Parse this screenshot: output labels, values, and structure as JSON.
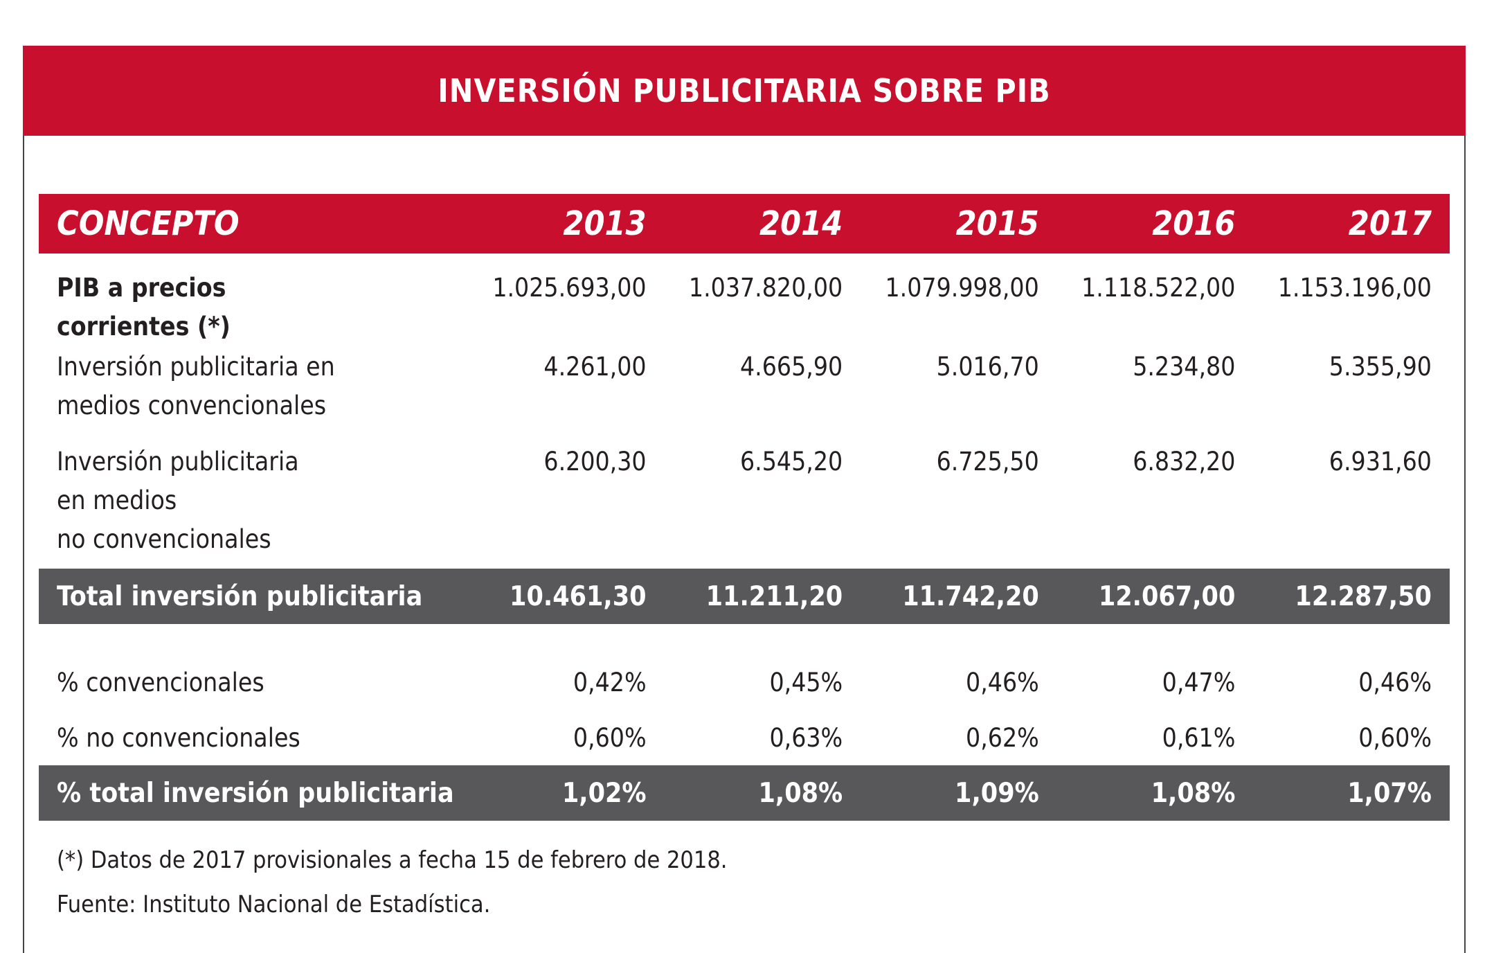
{
  "title": "INVERSIÓN PUBLICITARIA SOBRE PIB",
  "header": {
    "concept": "CONCEPTO",
    "years": [
      "2013",
      "2014",
      "2015",
      "2016",
      "2017"
    ]
  },
  "rows": [
    {
      "label_lines": [
        "PIB a precios",
        "corrientes (*)"
      ],
      "values": [
        "1.025.693,00",
        "1.037.820,00",
        "1.079.998,00",
        "1.118.522,00",
        "1.153.196,00"
      ]
    },
    {
      "label_lines": [
        "Inversión publicitaria en",
        "medios convencionales"
      ],
      "values": [
        "4.261,00",
        "4.665,90",
        "5.016,70",
        "5.234,80",
        "5.355,90"
      ]
    },
    {
      "label_lines": [
        "Inversión publicitaria",
        "en medios",
        "no convencionales"
      ],
      "values": [
        "6.200,30",
        "6.545,20",
        "6.725,50",
        "6.832,20",
        "6.931,60"
      ]
    }
  ],
  "total": {
    "label": "Total inversión publicitaria",
    "values": [
      "10.461,30",
      "11.211,20",
      "11.742,20",
      "12.067,00",
      "12.287,50"
    ]
  },
  "pct_rows": [
    {
      "label": "% convencionales",
      "values": [
        "0,42%",
        "0,45%",
        "0,46%",
        "0,47%",
        "0,46%"
      ]
    },
    {
      "label": "% no convencionales",
      "values": [
        "0,60%",
        "0,63%",
        "0,62%",
        "0,61%",
        "0,60%"
      ]
    }
  ],
  "pct_total": {
    "label": "% total inversión publicitaria",
    "values": [
      "1,02%",
      "1,08%",
      "1,09%",
      "1,08%",
      "1,07%"
    ]
  },
  "notes": {
    "footnote": "(*) Datos de 2017 provisionales a fecha 15 de febrero de 2018.",
    "source": "Fuente: Instituto Nacional de Estadística."
  },
  "colors": {
    "header_red": "#c8102e",
    "total_gray": "#58585a"
  }
}
